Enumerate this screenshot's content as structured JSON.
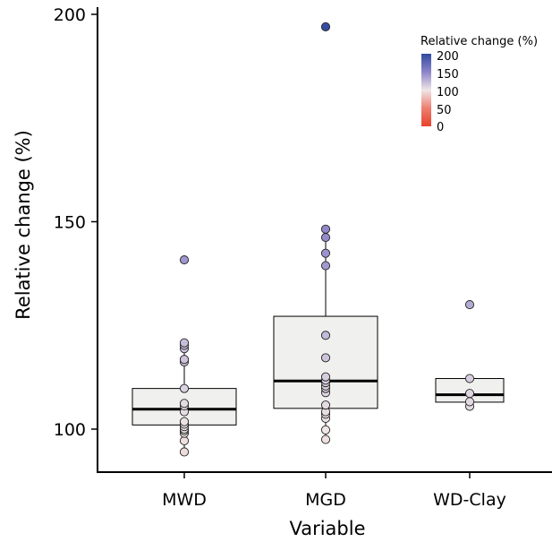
{
  "chart_data": {
    "type": "boxplot",
    "xlabel": "Variable",
    "ylabel": "Relative change (%)",
    "categories": [
      "MWD",
      "MGD",
      "WD-Clay"
    ],
    "ylim": [
      90,
      202
    ],
    "yticks": [
      100,
      150,
      200
    ],
    "grid": false,
    "boxes": [
      {
        "name": "MWD",
        "q1": 101,
        "median": 104.8,
        "q3": 109.8,
        "whisker_low": 94.5,
        "whisker_high": 120.5,
        "points": [
          94.5,
          97.2,
          99,
          99.6,
          100,
          100.6,
          101.2,
          101.8,
          104.2,
          105.6,
          106.2,
          109.8,
          116.2,
          116.8,
          119.4,
          120.2,
          120.8,
          140.8
        ]
      },
      {
        "name": "MGD",
        "q1": 105,
        "median": 111.6,
        "q3": 127.2,
        "whisker_low": 97.5,
        "whisker_high": 148.5,
        "points": [
          97.5,
          99.8,
          102.6,
          103.6,
          104.2,
          105.8,
          108.8,
          109.8,
          110.4,
          111.2,
          111.8,
          112.6,
          117.2,
          122.6,
          139.4,
          142.4,
          146.2,
          148.2,
          197
        ]
      },
      {
        "name": "WD-Clay",
        "q1": 106.5,
        "median": 108.3,
        "q3": 112.2,
        "whisker_low": 105.5,
        "whisker_high": 112.2,
        "points": [
          105.5,
          106.6,
          108.6,
          112.2,
          130
        ]
      }
    ],
    "color_scale": {
      "title": "Relative change (%)",
      "ticks": [
        "200",
        "150",
        "100",
        "50",
        "0"
      ],
      "colors": {
        "0": "#e8412b",
        "50": "#ee7e6f",
        "100": "#efe6e6",
        "150": "#8c84c8",
        "200": "#2f4aa0"
      }
    }
  }
}
